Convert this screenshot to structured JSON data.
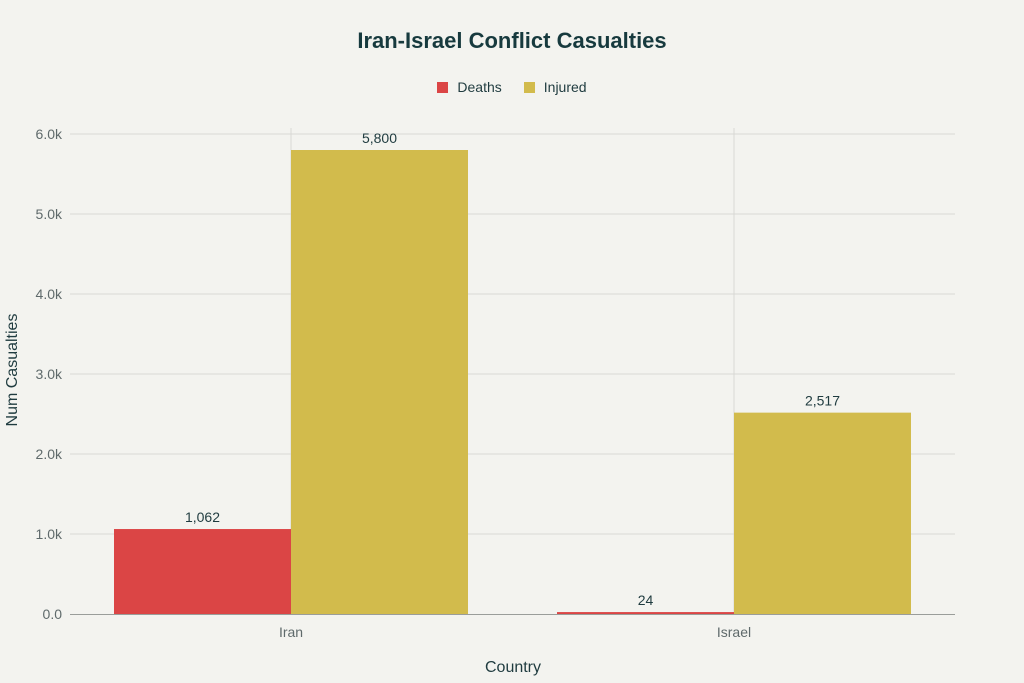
{
  "chart_data": {
    "type": "bar",
    "title": "Iran-Israel Conflict Casualties",
    "xlabel": "Country",
    "ylabel": "Num Casualties",
    "categories": [
      "Iran",
      "Israel"
    ],
    "series": [
      {
        "name": "Deaths",
        "values": [
          1062,
          24
        ],
        "labels": [
          "1,062",
          "24"
        ],
        "color": "#db4545"
      },
      {
        "name": "Injured",
        "values": [
          5800,
          2517
        ],
        "labels": [
          "5,800",
          "2,517"
        ],
        "color": "#d2bb4c"
      }
    ],
    "ylim": [
      0,
      6000
    ],
    "yticks": [
      0,
      1000,
      2000,
      3000,
      4000,
      5000,
      6000
    ],
    "ytick_labels": [
      "0.0",
      "1.0k",
      "2.0k",
      "3.0k",
      "4.0k",
      "5.0k",
      "6.0k"
    ],
    "grid": true,
    "legend_position": "top-center"
  }
}
